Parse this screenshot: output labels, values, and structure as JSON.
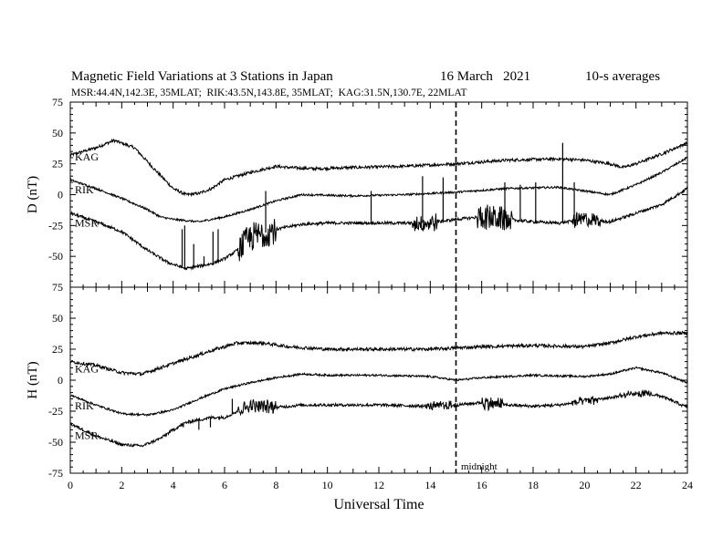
{
  "title": "Magnetic Field Variations at 3 Stations in Japan",
  "date_text": "16 March   2021",
  "averaging": "10-s averages",
  "subtitle": "MSR:44.4N,142.3E, 35MLAT;  RIK:43.5N,143.8E, 35MLAT;  KAG:31.5N,130.7E, 22MLAT",
  "xlabel": "Universal Time",
  "midnight_label": "midnight",
  "chart_data": [
    {
      "type": "line",
      "panel": "D",
      "ylabel": "D (nT)",
      "xlim": [
        0,
        24
      ],
      "ylim": [
        -75,
        75
      ],
      "yticks": [
        -75,
        -50,
        -25,
        0,
        25,
        50,
        75
      ],
      "xticks": [
        0,
        2,
        4,
        6,
        8,
        10,
        12,
        14,
        16,
        18,
        20,
        22,
        24
      ],
      "marker_line_x": 15,
      "series": [
        {
          "name": "KAG",
          "x": [
            0,
            1,
            1.7,
            2.5,
            3.3,
            4.0,
            4.5,
            5.0,
            5.5,
            6.0,
            7.0,
            8.0,
            8.5,
            9.5,
            11,
            13,
            15,
            17,
            19,
            20,
            21,
            21.5,
            22,
            23,
            24
          ],
          "y": [
            32,
            38,
            44,
            38,
            20,
            5,
            0,
            1,
            5,
            12,
            18,
            23,
            22,
            21,
            22,
            23,
            25,
            28,
            29,
            28,
            25,
            22,
            25,
            33,
            42
          ],
          "noise": 1.2
        },
        {
          "name": "RIK",
          "x": [
            0,
            1,
            2,
            3,
            3.5,
            4.0,
            5.0,
            6.0,
            7.0,
            8.0,
            9.0,
            11,
            13,
            15,
            17,
            19,
            20,
            21,
            22,
            23,
            24
          ],
          "y": [
            12,
            5,
            -3,
            -12,
            -18,
            -20,
            -22,
            -18,
            -12,
            -5,
            0,
            -1,
            0,
            2,
            5,
            6,
            3,
            0,
            8,
            18,
            30
          ],
          "noise": 0.8
        },
        {
          "name": "MSR",
          "x": [
            0,
            1,
            2,
            3,
            3.8,
            4.5,
            5.0,
            5.5,
            6.0,
            6.5,
            7.0,
            8.0,
            9,
            10,
            12,
            14,
            15,
            16,
            17,
            18,
            19,
            20,
            21,
            22,
            23,
            24
          ],
          "y": [
            -15,
            -22,
            -30,
            -45,
            -55,
            -60,
            -58,
            -56,
            -52,
            -45,
            -35,
            -28,
            -24,
            -23,
            -23,
            -23,
            -20,
            -18,
            -20,
            -22,
            -23,
            -20,
            -22,
            -15,
            -8,
            5
          ],
          "noise": 1.2,
          "bursts": [
            [
              6.5,
              8.0,
              12
            ],
            [
              13.3,
              14.3,
              7
            ],
            [
              15.8,
              17.2,
              10
            ],
            [
              19.5,
              20.6,
              6
            ]
          ],
          "spikes": [
            [
              4.35,
              -28
            ],
            [
              4.45,
              -25
            ],
            [
              4.8,
              -40
            ],
            [
              5.2,
              -50
            ],
            [
              5.55,
              -30
            ],
            [
              5.75,
              -28
            ],
            [
              7.6,
              3
            ],
            [
              11.7,
              3
            ],
            [
              13.7,
              15
            ],
            [
              14.5,
              14
            ],
            [
              16.9,
              10
            ],
            [
              17.5,
              8
            ],
            [
              18.1,
              10
            ],
            [
              19.15,
              42
            ],
            [
              19.6,
              10
            ]
          ]
        }
      ]
    },
    {
      "type": "line",
      "panel": "H",
      "ylabel": "H (nT)",
      "xlim": [
        0,
        24
      ],
      "ylim": [
        -75,
        75
      ],
      "yticks": [
        -75,
        -50,
        -25,
        0,
        25,
        50,
        75
      ],
      "xticks": [
        0,
        2,
        4,
        6,
        8,
        10,
        12,
        14,
        16,
        18,
        20,
        22,
        24
      ],
      "marker_line_x": 15,
      "series": [
        {
          "name": "KAG",
          "x": [
            0,
            1,
            2,
            2.8,
            3.5,
            4.5,
            5.5,
            6.5,
            7.5,
            8.5,
            10,
            12,
            14,
            16,
            18,
            20,
            21,
            22,
            23,
            24
          ],
          "y": [
            15,
            12,
            6,
            5,
            10,
            17,
            24,
            30,
            30,
            27,
            25,
            25,
            25,
            27,
            28,
            27,
            30,
            35,
            38,
            38
          ],
          "noise": 1.3
        },
        {
          "name": "RIK",
          "x": [
            0,
            1,
            2,
            3,
            4,
            5,
            6,
            7,
            8,
            9,
            10,
            12,
            14,
            15,
            16,
            18,
            20,
            21,
            22,
            23,
            24
          ],
          "y": [
            -12,
            -20,
            -27,
            -28,
            -24,
            -15,
            -7,
            -2,
            2,
            5,
            4,
            4,
            3,
            0,
            2,
            4,
            3,
            5,
            10,
            6,
            -2
          ],
          "noise": 0.8
        },
        {
          "name": "MSR",
          "x": [
            0,
            1,
            2,
            2.8,
            3.5,
            4.0,
            4.5,
            5.0,
            5.5,
            6.0,
            6.5,
            7.0,
            8.0,
            9.0,
            10,
            12,
            14,
            15,
            16,
            17,
            18,
            19,
            20,
            21,
            22,
            22.5,
            23,
            24
          ],
          "y": [
            -35,
            -45,
            -52,
            -53,
            -47,
            -40,
            -34,
            -32,
            -30,
            -30,
            -25,
            -20,
            -22,
            -20,
            -20,
            -20,
            -21,
            -20,
            -18,
            -20,
            -21,
            -20,
            -17,
            -14,
            -11,
            -11,
            -13,
            -22
          ],
          "noise": 1.2,
          "bursts": [
            [
              6.5,
              8.0,
              5
            ],
            [
              13.8,
              15.0,
              3
            ],
            [
              16.0,
              16.8,
              5
            ],
            [
              19.5,
              20.5,
              3
            ],
            [
              21.3,
              22.6,
              2
            ]
          ],
          "spikes": [
            [
              4.4,
              -38
            ],
            [
              4.6,
              -35
            ],
            [
              5.0,
              -40
            ],
            [
              5.45,
              -38
            ],
            [
              5.8,
              -32
            ],
            [
              6.3,
              -15
            ]
          ]
        }
      ]
    }
  ]
}
